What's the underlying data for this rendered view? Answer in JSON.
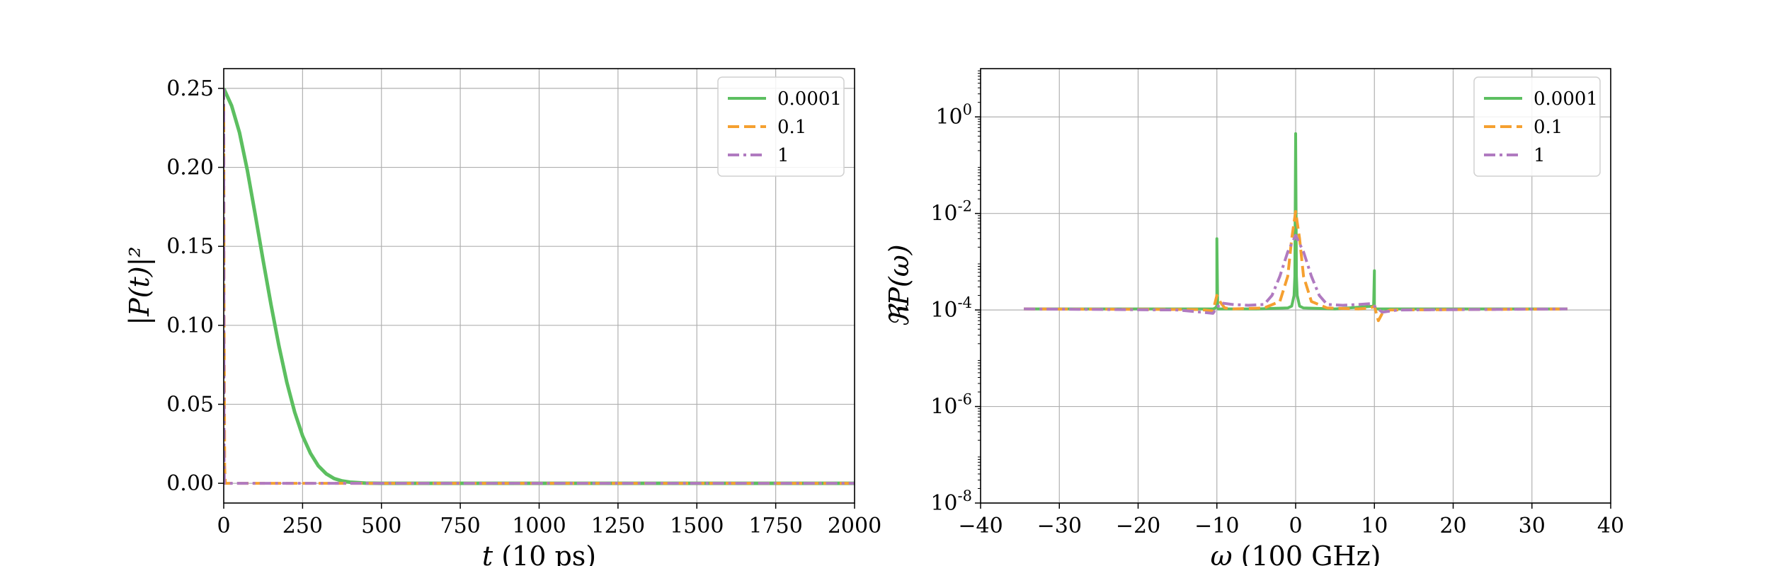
{
  "chart_data": [
    {
      "type": "line",
      "title": "",
      "xlabel_italic": "t",
      "xlabel_rest": " (10 ps)",
      "ylabel": "|P(t)|²",
      "xlim": [
        0,
        2000
      ],
      "ylim": [
        -0.0125,
        0.2625
      ],
      "xticks": [
        0,
        250,
        500,
        750,
        1000,
        1250,
        1500,
        1750,
        2000
      ],
      "yticks": [
        0.0,
        0.05,
        0.1,
        0.15,
        0.2,
        0.25
      ],
      "xtick_labels": [
        "0",
        "250",
        "500",
        "750",
        "1000",
        "1250",
        "1500",
        "1750",
        "2000"
      ],
      "ytick_labels": [
        "0.00",
        "0.05",
        "0.10",
        "0.15",
        "0.20",
        "0.25"
      ],
      "grid": true,
      "legend_position": "top-right",
      "series": [
        {
          "name": "0.0001",
          "color": "#5cbf60",
          "dash": "solid",
          "x": [
            0,
            25,
            50,
            75,
            100,
            125,
            150,
            175,
            200,
            225,
            250,
            275,
            300,
            325,
            350,
            375,
            400,
            450,
            500,
            2000
          ],
          "y": [
            0.25,
            0.239,
            0.222,
            0.198,
            0.17,
            0.141,
            0.113,
            0.087,
            0.064,
            0.045,
            0.03,
            0.019,
            0.011,
            0.006,
            0.003,
            0.0015,
            0.0007,
            0.0001,
            0.0,
            0.0
          ]
        },
        {
          "name": "0.1",
          "color": "#f5a030",
          "dash": "dashed",
          "x": [
            0,
            1,
            3,
            5,
            10,
            2000
          ],
          "y": [
            0.25,
            0.12,
            0.01,
            0.0,
            0.0,
            0.0
          ]
        },
        {
          "name": "1",
          "color": "#b07ac0",
          "dash": "dashdot",
          "x": [
            0,
            1,
            2,
            3,
            5,
            2000
          ],
          "y": [
            0.25,
            0.02,
            0.0,
            0.0,
            0.0,
            0.0
          ]
        }
      ]
    },
    {
      "type": "line",
      "title": "",
      "xlabel_italic": "ω",
      "xlabel_rest": " (100 GHz)",
      "ylabel": "ℜP(ω)",
      "yscale": "log",
      "xlim": [
        -40,
        40
      ],
      "ylim_exp": [
        -8,
        1
      ],
      "xticks": [
        -40,
        -30,
        -20,
        -10,
        0,
        10,
        20,
        30,
        40
      ],
      "xtick_labels": [
        "−40",
        "−30",
        "−20",
        "−10",
        "0",
        "10",
        "20",
        "30",
        "40"
      ],
      "yticks_exp": [
        -8,
        -6,
        -4,
        -2,
        0
      ],
      "ytick_bases": [
        "10",
        "10",
        "10",
        "10",
        "10"
      ],
      "ytick_exps": [
        "-8",
        "-6",
        "-4",
        "-2",
        "0"
      ],
      "grid": true,
      "legend_position": "top-right",
      "series": [
        {
          "name": "0.0001",
          "color": "#5cbf60",
          "dash": "solid",
          "x": [
            -34.5,
            -10.5,
            -10.2,
            -10.0,
            -10.0,
            -9.9,
            -9.8,
            -5.0,
            -1.0,
            -0.5,
            -0.2,
            -0.1,
            0.0,
            0.1,
            0.2,
            0.5,
            1.0,
            5.0,
            9.9,
            10.0,
            10.0,
            10.1,
            10.3,
            34.5
          ],
          "y": [
            0.000105,
            0.000105,
            0.00011,
            0.00012,
            0.003,
            0.00012,
            0.000105,
            0.000105,
            0.00011,
            0.00012,
            0.0002,
            0.0005,
            0.45,
            0.0005,
            0.0002,
            0.00012,
            0.00011,
            0.000105,
            0.00012,
            0.00065,
            0.00012,
            0.00011,
            0.000105,
            0.000105
          ]
        },
        {
          "name": "0.1",
          "color": "#f5a030",
          "dash": "dashed",
          "x": [
            -34.5,
            -12.0,
            -10.5,
            -10.0,
            -9.5,
            -9.0,
            -8.0,
            -4.0,
            -2.0,
            -1.0,
            -0.5,
            0.0,
            0.5,
            1.0,
            2.0,
            4.0,
            8.0,
            9.5,
            10.0,
            10.5,
            11.0,
            12.0,
            34.5
          ],
          "y": [
            0.000105,
            0.000102,
            9.5e-05,
            0.0002,
            0.00014,
            0.00011,
            0.000105,
            0.00011,
            0.00015,
            0.0005,
            0.003,
            0.011,
            0.003,
            0.0005,
            0.00015,
            0.00011,
            0.000105,
            0.00011,
            0.00012,
            6e-05,
            8.5e-05,
            0.0001,
            0.000105
          ]
        },
        {
          "name": "1",
          "color": "#b07ac0",
          "dash": "dashdot",
          "x": [
            -34.5,
            -15.0,
            -12.0,
            -10.5,
            -10.0,
            -9.5,
            -8.0,
            -6.0,
            -4.0,
            -3.0,
            -2.0,
            -1.0,
            0.0,
            1.0,
            2.0,
            3.0,
            4.0,
            6.0,
            8.0,
            9.5,
            10.0,
            11.0,
            13.0,
            34.5
          ],
          "y": [
            0.000105,
            0.0001,
            9e-05,
            8.5e-05,
            0.00011,
            0.00014,
            0.00013,
            0.000125,
            0.00013,
            0.0002,
            0.0005,
            0.0016,
            0.0035,
            0.0016,
            0.0005,
            0.0002,
            0.00013,
            0.000125,
            0.00013,
            0.000135,
            0.00012,
            9e-05,
            0.0001,
            0.000105
          ]
        }
      ]
    }
  ]
}
